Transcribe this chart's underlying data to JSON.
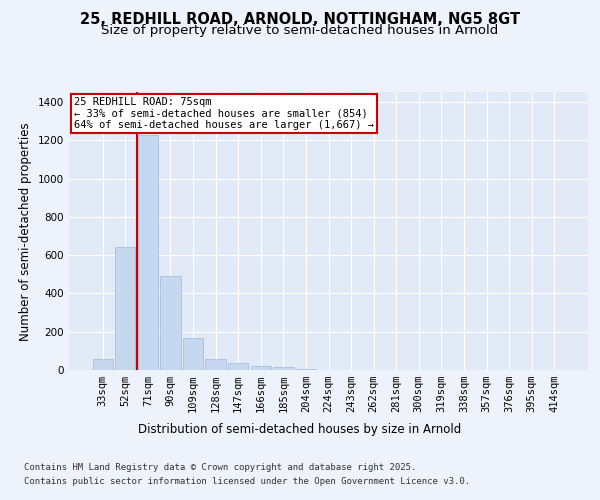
{
  "title_line1": "25, REDHILL ROAD, ARNOLD, NOTTINGHAM, NG5 8GT",
  "title_line2": "Size of property relative to semi-detached houses in Arnold",
  "xlabel": "Distribution of semi-detached houses by size in Arnold",
  "ylabel": "Number of semi-detached properties",
  "footnote1": "Contains HM Land Registry data © Crown copyright and database right 2025.",
  "footnote2": "Contains public sector information licensed under the Open Government Licence v3.0.",
  "annotation_line1": "25 REDHILL ROAD: 75sqm",
  "annotation_line2": "← 33% of semi-detached houses are smaller (854)",
  "annotation_line3": "64% of semi-detached houses are larger (1,667) →",
  "bar_labels": [
    "33sqm",
    "52sqm",
    "71sqm",
    "90sqm",
    "109sqm",
    "128sqm",
    "147sqm",
    "166sqm",
    "185sqm",
    "204sqm",
    "224sqm",
    "243sqm",
    "262sqm",
    "281sqm",
    "300sqm",
    "319sqm",
    "338sqm",
    "357sqm",
    "376sqm",
    "395sqm",
    "414sqm"
  ],
  "bar_values": [
    55,
    645,
    1230,
    490,
    165,
    55,
    35,
    20,
    15,
    5,
    0,
    0,
    0,
    0,
    0,
    0,
    0,
    0,
    0,
    0,
    0
  ],
  "bar_color": "#c5d8f0",
  "bar_edge_color": "#a0b8d8",
  "ylim": [
    0,
    1450
  ],
  "yticks": [
    0,
    200,
    400,
    600,
    800,
    1000,
    1200,
    1400
  ],
  "bg_color": "#eef2fb",
  "plot_bg_color": "#e2eaf7",
  "grid_color": "#ffffff",
  "annotation_box_color": "#cc0000",
  "title_fontsize": 10.5,
  "subtitle_fontsize": 9.5,
  "axis_label_fontsize": 8.5,
  "tick_fontsize": 7.5,
  "annotation_fontsize": 7.5,
  "footnote_fontsize": 6.5,
  "red_line_x": 1.5
}
